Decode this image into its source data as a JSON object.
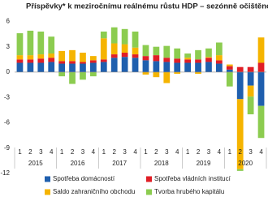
{
  "chart_data": {
    "type": "stacked-bar",
    "title": "Příspěvky* k meziročnímu reálnému růstu HDP – sezónně očištěno",
    "categories": [
      "1",
      "2",
      "3",
      "4",
      "1",
      "2",
      "3",
      "4",
      "1",
      "2",
      "3",
      "4",
      "1",
      "2",
      "3",
      "4",
      "1",
      "2",
      "3",
      "4",
      "1",
      "2",
      "3",
      "4"
    ],
    "years": [
      "2015",
      "2016",
      "2017",
      "2018",
      "2019",
      "2020"
    ],
    "series": [
      {
        "name": "Spotřeba domácností",
        "color": "#1f5fae",
        "values": [
          1.1,
          1.1,
          1.1,
          1.2,
          1.0,
          1.0,
          1.0,
          1.1,
          1.2,
          1.7,
          1.8,
          1.7,
          1.4,
          1.3,
          1.2,
          1.1,
          1.1,
          1.1,
          1.2,
          1.0,
          0.3,
          -3.2,
          -1.6,
          -4.0
        ]
      },
      {
        "name": "Spotřeba vládních institucí",
        "color": "#e01e26",
        "values": [
          0.4,
          0.4,
          0.5,
          0.5,
          0.3,
          0.3,
          0.2,
          0.3,
          0.3,
          0.4,
          0.5,
          0.4,
          0.5,
          0.7,
          0.5,
          0.5,
          0.4,
          0.4,
          0.5,
          0.4,
          0.4,
          0.6,
          0.6,
          1.1
        ]
      },
      {
        "name": "Saldo zahraničního obchodu",
        "color": "#f5b400",
        "values": [
          0.5,
          0.5,
          0.5,
          0.5,
          1.2,
          1.3,
          1.1,
          0.5,
          2.5,
          1.3,
          1.0,
          0.8,
          -0.3,
          -0.6,
          -1.3,
          -0.2,
          0.2,
          -0.2,
          0.1,
          0.6,
          0.2,
          -8.3,
          -1.3,
          3.0
        ]
      },
      {
        "name": "Tvorba hrubého kapitálu",
        "color": "#8ccc50",
        "values": [
          2.6,
          2.9,
          2.7,
          2.0,
          -0.5,
          -1.4,
          -0.9,
          -0.5,
          0.8,
          1.9,
          1.8,
          1.9,
          1.3,
          1.0,
          1.4,
          1.2,
          0.5,
          1.1,
          1.0,
          1.5,
          -1.7,
          -0.2,
          -2.1,
          -3.8
        ]
      }
    ],
    "ylim": [
      -12,
      7
    ],
    "yticks": [
      6,
      3,
      0,
      -3,
      -6,
      -9,
      -12
    ],
    "grid": false
  }
}
